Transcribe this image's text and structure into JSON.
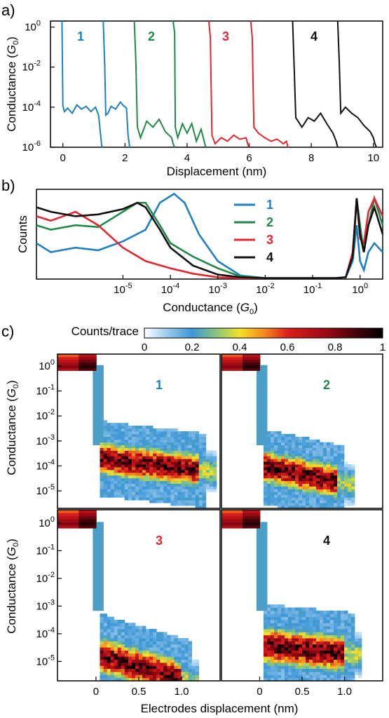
{
  "panels": {
    "a": "a)",
    "b": "b)",
    "c": "c)"
  },
  "colors": {
    "1": "#1f7fc0",
    "2": "#1f8a45",
    "3": "#e32630",
    "4": "#111111"
  },
  "chart_data": [
    {
      "type": "line",
      "panel": "a",
      "xlabel": "Displacement (nm)",
      "ylabel": "Conductance (G0)",
      "ylabel_main": "Conductance (",
      "ylabel_sym": "G",
      "ylabel_sub": "0",
      "ylabel_end": ")",
      "xlim": [
        -0.4,
        10.3
      ],
      "ylim": [
        1e-06,
        2
      ],
      "yscale": "log",
      "x_ticks": [
        "0",
        "2",
        "4",
        "6",
        "8",
        "10"
      ],
      "y_ticks": [
        "10",
        "10",
        "10",
        "10"
      ],
      "y_tick_exps": [
        "0",
        "-2",
        "-4",
        "-6"
      ],
      "series": [
        {
          "label": "1",
          "x": [
            -0.03,
            -0.02,
            0.0,
            0.05,
            0.15,
            0.3,
            0.45,
            0.6,
            0.75,
            0.9,
            1.05,
            1.15,
            1.25,
            1.28,
            1.3
          ],
          "y": [
            2,
            0.1,
            0.00012,
            6e-05,
            9e-05,
            5e-05,
            0.00013,
            8e-05,
            0.00011,
            6e-05,
            0.0001,
            4e-05,
            1.2e-06,
            1e-06,
            1e-06
          ]
        },
        {
          "label": "1",
          "x": [
            1.3,
            1.35,
            1.38,
            1.45,
            1.55,
            1.7,
            1.85,
            1.95,
            2.05,
            2.1,
            2.15
          ],
          "y": [
            2,
            0.01,
            4e-05,
            5e-05,
            0.00011,
            8e-05,
            0.00018,
            0.00012,
            9e-05,
            4e-06,
            1e-06
          ]
        },
        {
          "label": "2",
          "x": [
            2.3,
            2.35,
            2.4,
            2.5,
            2.7,
            2.9,
            3.1,
            3.3,
            3.5,
            3.55,
            3.6
          ],
          "y": [
            2,
            0.02,
            1e-05,
            3e-06,
            2e-05,
            1e-05,
            2.5e-05,
            6e-06,
            3e-06,
            1.5e-06,
            1e-06
          ]
        },
        {
          "label": "2",
          "x": [
            3.55,
            3.6,
            3.62,
            3.7,
            3.85,
            4.0,
            4.15,
            4.3,
            4.45,
            4.55,
            4.6
          ],
          "y": [
            2,
            0.5,
            1e-05,
            3e-06,
            1.5e-05,
            5e-06,
            1.5e-05,
            2e-06,
            8e-06,
            2e-06,
            1e-06
          ]
        },
        {
          "label": "3",
          "x": [
            4.7,
            4.75,
            4.8,
            4.9,
            5.1,
            5.3,
            5.5,
            5.7,
            5.9,
            5.95,
            6.0
          ],
          "y": [
            2,
            0.3,
            4e-06,
            1.5e-06,
            3e-06,
            2e-06,
            4e-06,
            2.5e-06,
            3e-06,
            1.5e-06,
            1e-06
          ]
        },
        {
          "label": "3",
          "x": [
            6.05,
            6.1,
            6.15,
            6.3,
            6.5,
            6.7,
            6.9,
            7.1,
            7.2,
            7.25
          ],
          "y": [
            2,
            0.3,
            1e-05,
            5e-06,
            3e-06,
            2e-06,
            2.5e-06,
            1.5e-06,
            2e-06,
            1e-06
          ]
        },
        {
          "label": "4",
          "x": [
            7.4,
            7.45,
            7.5,
            7.7,
            7.9,
            8.1,
            8.3,
            8.5,
            8.7,
            8.8,
            8.85
          ],
          "y": [
            2,
            0.01,
            3e-05,
            1e-05,
            3e-05,
            2e-05,
            5e-05,
            1.5e-05,
            5e-06,
            2e-06,
            1e-06
          ]
        },
        {
          "label": "4",
          "x": [
            8.85,
            8.9,
            8.95,
            9.1,
            9.3,
            9.5,
            9.7,
            9.9,
            10.0,
            10.05,
            10.1
          ],
          "y": [
            2,
            0.02,
            5e-05,
            0.0001,
            5e-05,
            3e-05,
            1.2e-05,
            6e-06,
            3e-06,
            1.5e-06,
            1e-06
          ]
        }
      ]
    },
    {
      "type": "line",
      "panel": "b",
      "xlabel": "Conductance (G0)",
      "xlabel_main": "Conductance (",
      "xlabel_sym": "G",
      "xlabel_sub": "0",
      "xlabel_end": ")",
      "ylabel": "Counts",
      "xscale": "log",
      "xlim": [
        1.5e-07,
        3
      ],
      "x_ticks": [
        "10",
        "10",
        "10",
        "10",
        "10",
        "10"
      ],
      "x_tick_exps": [
        "-5",
        "-4",
        "-3",
        "-2",
        "-1",
        "0"
      ],
      "legend": [
        "1",
        "2",
        "3",
        "4"
      ],
      "legend_position": "right",
      "series": [
        {
          "label": "1",
          "x": [
            1.5e-07,
            3e-07,
            1e-06,
            3e-06,
            1e-05,
            3e-05,
            6e-05,
            0.00012,
            0.0002,
            0.0004,
            0.001,
            0.003,
            0.01,
            0.1,
            0.3,
            0.5,
            0.7,
            0.85,
            1.0,
            1.2,
            1.5,
            2,
            3
          ],
          "y": [
            0.4,
            0.3,
            0.35,
            0.32,
            0.42,
            0.55,
            0.85,
            0.95,
            0.85,
            0.5,
            0.2,
            0.04,
            0.01,
            0.01,
            0.01,
            0.02,
            0.2,
            0.6,
            0.2,
            0.1,
            0.3,
            0.4,
            0.3
          ]
        },
        {
          "label": "2",
          "x": [
            1.5e-07,
            3e-07,
            1e-06,
            3e-06,
            1e-05,
            2e-05,
            3e-05,
            6e-05,
            0.0001,
            0.0003,
            0.001,
            0.003,
            0.01,
            0.1,
            0.3,
            0.5,
            0.7,
            0.85,
            1.0,
            1.2,
            1.5,
            2,
            3
          ],
          "y": [
            0.6,
            0.55,
            0.6,
            0.58,
            0.75,
            0.85,
            0.85,
            0.6,
            0.4,
            0.25,
            0.12,
            0.03,
            0.01,
            0.01,
            0.01,
            0.02,
            0.25,
            0.9,
            0.6,
            0.3,
            0.6,
            0.9,
            0.6
          ]
        },
        {
          "label": "3",
          "x": [
            1.5e-07,
            3e-07,
            1e-06,
            3e-06,
            1e-05,
            3e-05,
            0.0001,
            0.0003,
            0.001,
            0.003,
            0.01,
            0.1,
            0.3,
            0.5,
            0.7,
            0.85,
            1.0,
            1.2,
            1.5,
            2,
            3
          ],
          "y": [
            0.7,
            0.65,
            0.75,
            0.6,
            0.35,
            0.2,
            0.12,
            0.06,
            0.02,
            0.01,
            0.01,
            0.01,
            0.01,
            0.02,
            0.3,
            0.9,
            0.45,
            0.4,
            0.75,
            0.9,
            0.7
          ]
        },
        {
          "label": "4",
          "x": [
            1.5e-07,
            3e-07,
            1e-06,
            3e-06,
            1e-05,
            2e-05,
            3e-05,
            6e-05,
            0.0001,
            0.0003,
            0.001,
            0.003,
            0.01,
            0.1,
            0.3,
            0.5,
            0.7,
            0.85,
            1.0,
            1.2,
            1.5,
            2,
            3
          ],
          "y": [
            0.8,
            0.75,
            0.7,
            0.72,
            0.78,
            0.85,
            0.8,
            0.55,
            0.35,
            0.15,
            0.05,
            0.02,
            0.01,
            0.01,
            0.01,
            0.02,
            0.25,
            0.9,
            0.5,
            0.3,
            0.6,
            0.8,
            0.5
          ]
        }
      ]
    },
    {
      "type": "heatmap",
      "panel": "c",
      "colorbar_label": "Counts/trace",
      "colorbar_ticks": [
        "0",
        "0.2",
        "0.4",
        "0.6",
        "0.8",
        "1"
      ],
      "colorbar_range": [
        0,
        1
      ],
      "xlabel": "Electrodes displacement (nm)",
      "ylabel": "Conductance (G0)",
      "ylabel_main": "Conductance (",
      "ylabel_sym": "G",
      "ylabel_sub": "0",
      "ylabel_end": ")",
      "yscale": "log",
      "ylim": [
        2e-06,
        3
      ],
      "xlim": [
        -0.45,
        1.45
      ],
      "x_ticks": [
        "0",
        "0.5",
        "1.0"
      ],
      "y_ticks": [
        "10",
        "10",
        "10",
        "10",
        "10",
        "10"
      ],
      "y_tick_exps": [
        "0",
        "-1",
        "-2",
        "-3",
        "-4",
        "-5"
      ],
      "subplots": [
        {
          "label": "1",
          "plateau_log_center": -3.8,
          "plateau_x_end": 1.2,
          "plateau_slope": -0.4
        },
        {
          "label": "2",
          "plateau_log_center": -4.2,
          "plateau_x_end": 0.9,
          "plateau_slope": -0.7
        },
        {
          "label": "3",
          "plateau_log_center": -5.0,
          "plateau_x_end": 1.0,
          "plateau_slope": -0.9
        },
        {
          "label": "4",
          "plateau_log_center": -4.5,
          "plateau_x_end": 1.0,
          "plateau_slope": -0.3
        }
      ]
    }
  ]
}
